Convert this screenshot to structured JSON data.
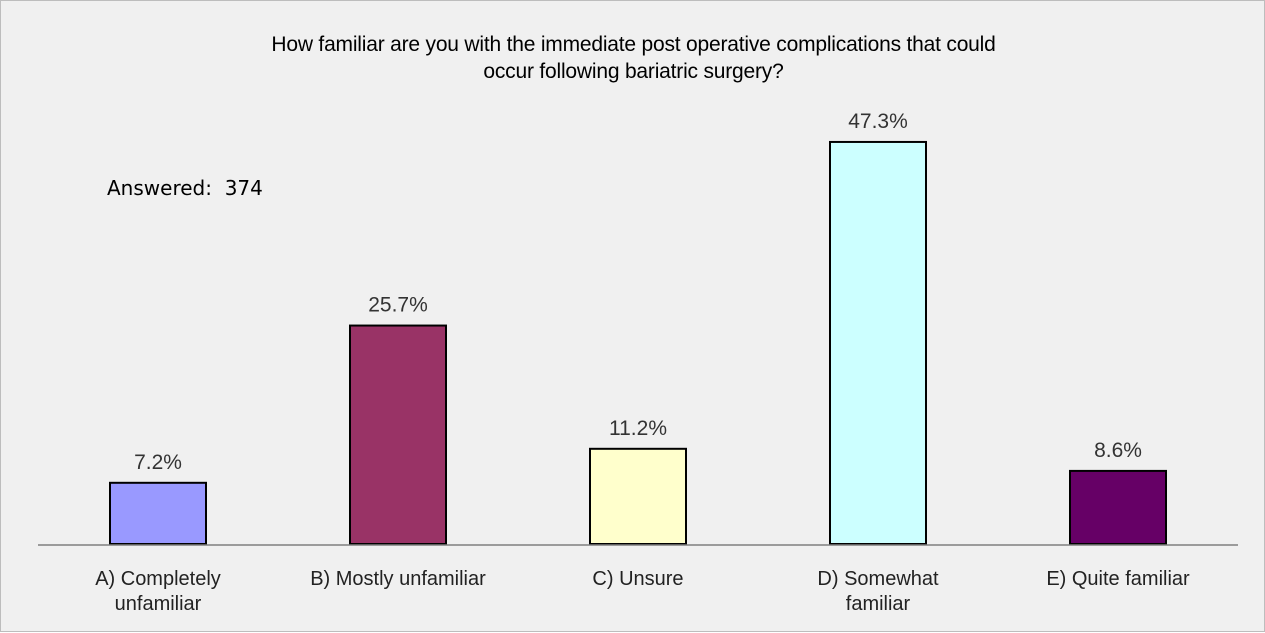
{
  "chart_data": {
    "type": "bar",
    "title": "How familiar are you with the immediate post operative complications that could occur following bariatric surgery?",
    "title_lines": [
      "How familiar are you with the immediate post operative complications that could",
      "occur following bariatric surgery?"
    ],
    "annotation": {
      "label": "Answered:",
      "value": "374"
    },
    "categories": [
      "A) Completely unfamiliar",
      "B) Mostly unfamiliar",
      "C) Unsure",
      "D) Somewhat familiar",
      "E) Quite familiar"
    ],
    "category_lines": [
      [
        "A) Completely",
        "unfamiliar"
      ],
      [
        "B) Mostly unfamiliar"
      ],
      [
        "C) Unsure"
      ],
      [
        "D) Somewhat",
        "familiar"
      ],
      [
        "E) Quite familiar"
      ]
    ],
    "values": [
      7.2,
      25.7,
      11.2,
      47.3,
      8.6
    ],
    "value_labels": [
      "7.2%",
      "25.7%",
      "11.2%",
      "47.3%",
      "8.6%"
    ],
    "bar_colors": [
      "#9999ff",
      "#993366",
      "#ffffcc",
      "#ccffff",
      "#660066"
    ],
    "ylim": [
      0,
      50
    ],
    "xlabel": "",
    "ylabel": "",
    "grid": false,
    "legend": "none"
  }
}
